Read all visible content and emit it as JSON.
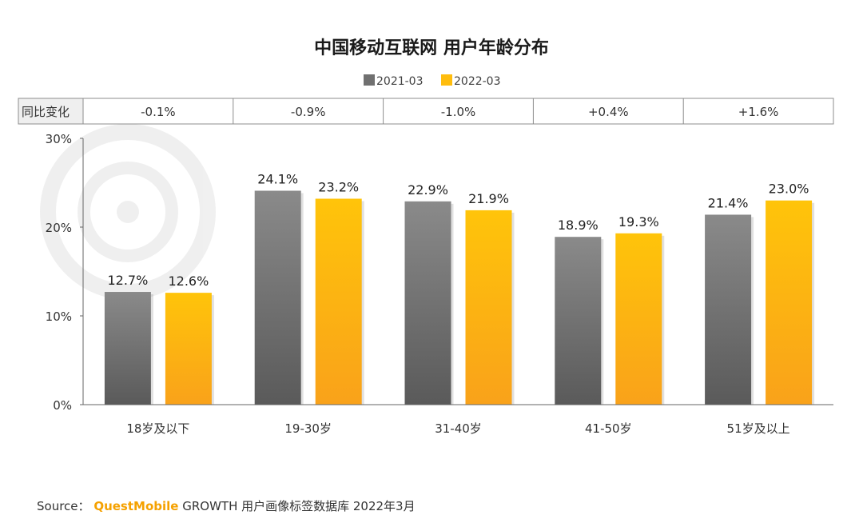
{
  "chart_data": {
    "type": "bar",
    "title": "中国移动互联网 用户年龄分布",
    "categories": [
      "18岁及以下",
      "19-30岁",
      "31-40岁",
      "41-50岁",
      "51岁及以上"
    ],
    "series": [
      {
        "name": "2021-03",
        "values": [
          12.7,
          24.1,
          22.9,
          18.9,
          21.4
        ],
        "labels": [
          "12.7%",
          "24.1%",
          "22.9%",
          "18.9%",
          "21.4%"
        ],
        "color_top": "#8a8a8a",
        "color_bottom": "#5a5a5a"
      },
      {
        "name": "2022-03",
        "values": [
          12.6,
          23.2,
          21.9,
          19.3,
          23.0
        ],
        "labels": [
          "12.6%",
          "23.2%",
          "21.9%",
          "19.3%",
          "23.0%"
        ],
        "color_top": "#ffc40a",
        "color_bottom": "#f9a21a"
      }
    ],
    "ylim": [
      0,
      30
    ],
    "yticks": [
      0,
      10,
      20,
      30
    ],
    "ytick_labels": [
      "0%",
      "10%",
      "20%",
      "30%"
    ],
    "xlabel": "",
    "ylabel": "",
    "legend_position": "top-center",
    "yoy_table": {
      "row_label": "同比变化",
      "values": [
        "-0.1%",
        "-0.9%",
        "-1.0%",
        "+0.4%",
        "+1.6%"
      ],
      "positive_color": "#ff0000",
      "negative_color": "#333333"
    }
  },
  "source": {
    "prefix": "Source：",
    "brand": "QuestMobile",
    "suffix": " GROWTH 用户画像标签数据库 2022年3月"
  }
}
